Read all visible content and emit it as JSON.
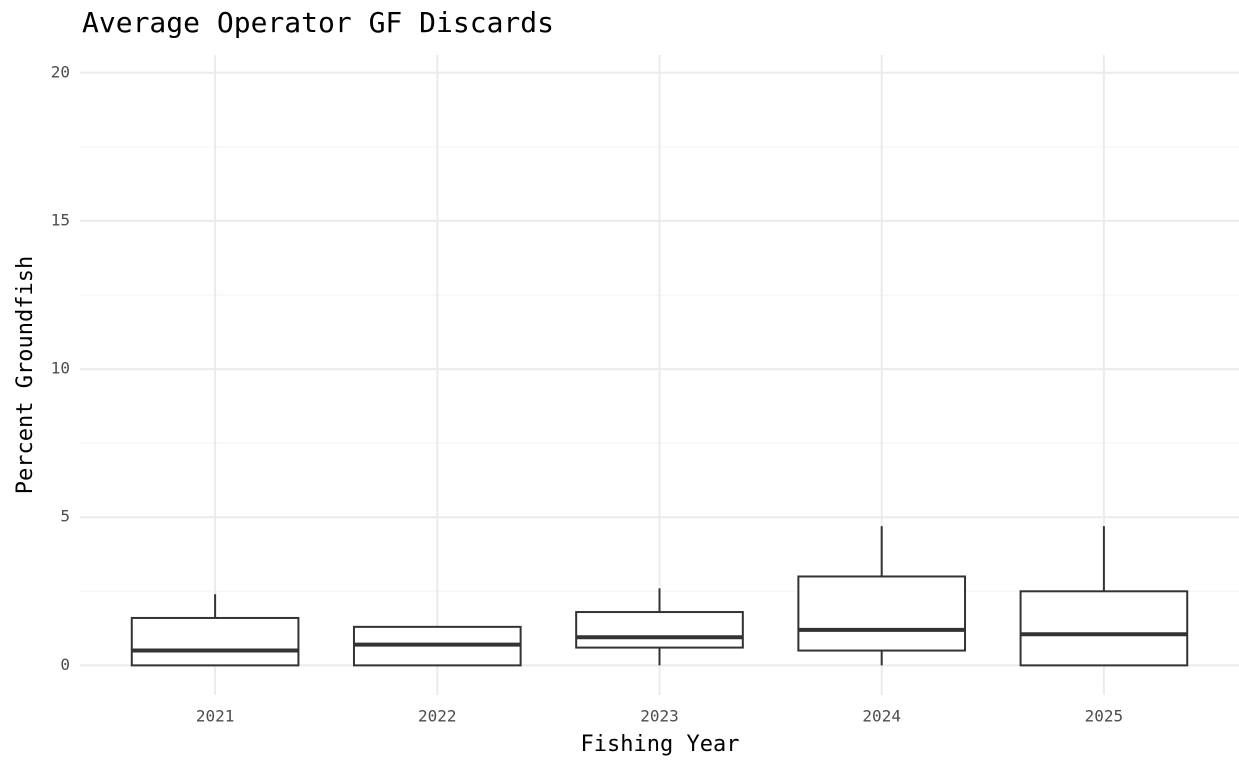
{
  "chart_data": {
    "type": "box",
    "title": "Average Operator GF Discards",
    "x_label": "Fishing Year",
    "y_label": "Percent Groundfish",
    "categories": [
      "2021",
      "2022",
      "2023",
      "2024",
      "2025"
    ],
    "boxes": [
      {
        "min": 0,
        "q1": 0,
        "median": 0.5,
        "q3": 1.6,
        "max": 2.4
      },
      {
        "min": 0,
        "q1": 0,
        "median": 0.7,
        "q3": 1.3,
        "max": 1.3
      },
      {
        "min": 0,
        "q1": 0.6,
        "median": 0.95,
        "q3": 1.8,
        "max": 2.6
      },
      {
        "min": 0,
        "q1": 0.5,
        "median": 1.2,
        "q3": 3.0,
        "max": 4.7
      },
      {
        "min": 0,
        "q1": 0,
        "median": 1.05,
        "q3": 2.5,
        "max": 4.7
      }
    ],
    "color": "#333333",
    "ylim": [
      -1,
      20.6
    ],
    "yticks": [
      0,
      5,
      10,
      15,
      20
    ],
    "minor_yticks": [
      2.5,
      7.5,
      12.5,
      17.5
    ],
    "grid": true
  }
}
